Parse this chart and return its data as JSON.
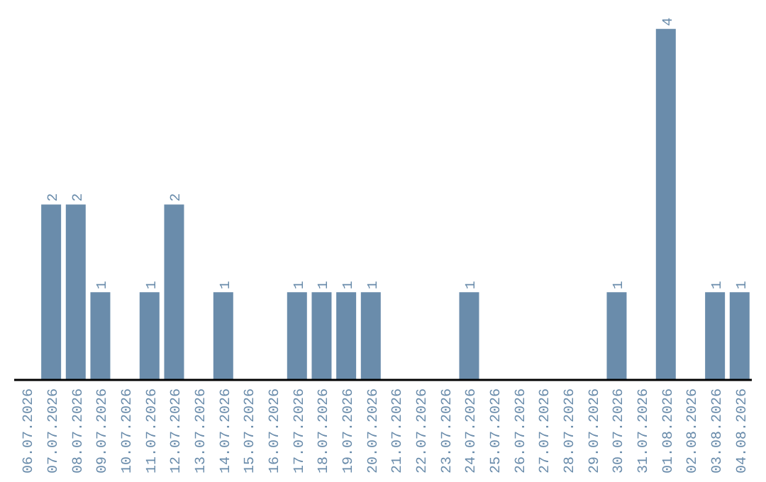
{
  "chart_data": {
    "type": "bar",
    "color": "#6a8cab",
    "categories": [
      "06.07.2026",
      "07.07.2026",
      "08.07.2026",
      "09.07.2026",
      "10.07.2026",
      "11.07.2026",
      "12.07.2026",
      "13.07.2026",
      "14.07.2026",
      "15.07.2026",
      "16.07.2026",
      "17.07.2026",
      "18.07.2026",
      "19.07.2026",
      "20.07.2026",
      "21.07.2026",
      "22.07.2026",
      "23.07.2026",
      "24.07.2026",
      "25.07.2026",
      "26.07.2026",
      "27.07.2026",
      "28.07.2026",
      "29.07.2026",
      "30.07.2026",
      "31.07.2026",
      "01.08.2026",
      "02.08.2026",
      "03.08.2026",
      "04.08.2026"
    ],
    "values": [
      0,
      2,
      2,
      1,
      0,
      1,
      2,
      0,
      1,
      0,
      0,
      1,
      1,
      1,
      1,
      0,
      0,
      0,
      1,
      0,
      0,
      0,
      0,
      0,
      1,
      0,
      4,
      0,
      1,
      1
    ],
    "value_labels": [
      null,
      "2",
      "2",
      "1",
      null,
      "1",
      "2",
      null,
      "1",
      null,
      null,
      "1",
      "1",
      "1",
      "1",
      null,
      null,
      null,
      "1",
      null,
      null,
      null,
      null,
      null,
      "1",
      null,
      "4",
      null,
      "1",
      "1"
    ],
    "grid": false,
    "legend": false
  }
}
